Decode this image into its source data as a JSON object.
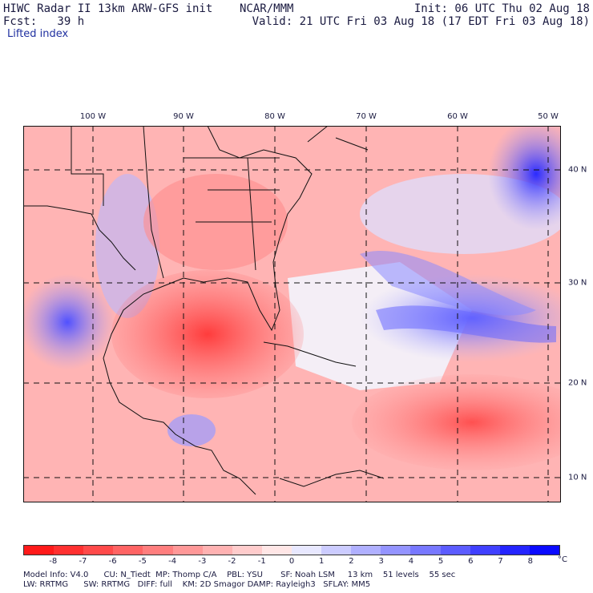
{
  "header": {
    "title_left": "HIWC Radar II 13km ARW-GFS init    NCAR/MMM",
    "fcst": "Fcst:   39 h",
    "init": "Init: 06 UTC Thu 02 Aug 18",
    "valid": "Valid: 21 UTC Fri 03 Aug 18 (17 EDT Fri 03 Aug 18)",
    "field": "Lifted index"
  },
  "map": {
    "lon_labels": [
      "100 W",
      "90 W",
      "80 W",
      "70 W",
      "60 W",
      "50 W"
    ],
    "lat_labels": [
      "40 N",
      "30 N",
      "20 N",
      "10 N"
    ]
  },
  "colorbar": {
    "labels": [
      "-8",
      "-7",
      "-6",
      "-5",
      "-4",
      "-3",
      "-2",
      "-1",
      "0",
      "1",
      "2",
      "3",
      "4",
      "5",
      "6",
      "7",
      "8"
    ],
    "unit": "°C",
    "colors": [
      "#ff1a1a",
      "#ff3030",
      "#ff4a4a",
      "#ff6464",
      "#ff7e7e",
      "#ff9898",
      "#ffb2b2",
      "#ffcccc",
      "#ffe6e6",
      "#e8e8ff",
      "#ccccff",
      "#b0b0ff",
      "#9494ff",
      "#7878ff",
      "#5c5cff",
      "#4040ff",
      "#2424ff",
      "#0a0aff"
    ]
  },
  "footer": {
    "line1": "Model Info: V4.0      CU: N_Tiedt  MP: Thomp C/A    PBL: YSU       SF: Noah LSM     13 km    51 levels    55 sec",
    "line2": "LW: RRTMG      SW: RRTMG   DIFF: full    KM: 2D Smagor DAMP: Rayleigh3   SFLAY: MM5"
  }
}
